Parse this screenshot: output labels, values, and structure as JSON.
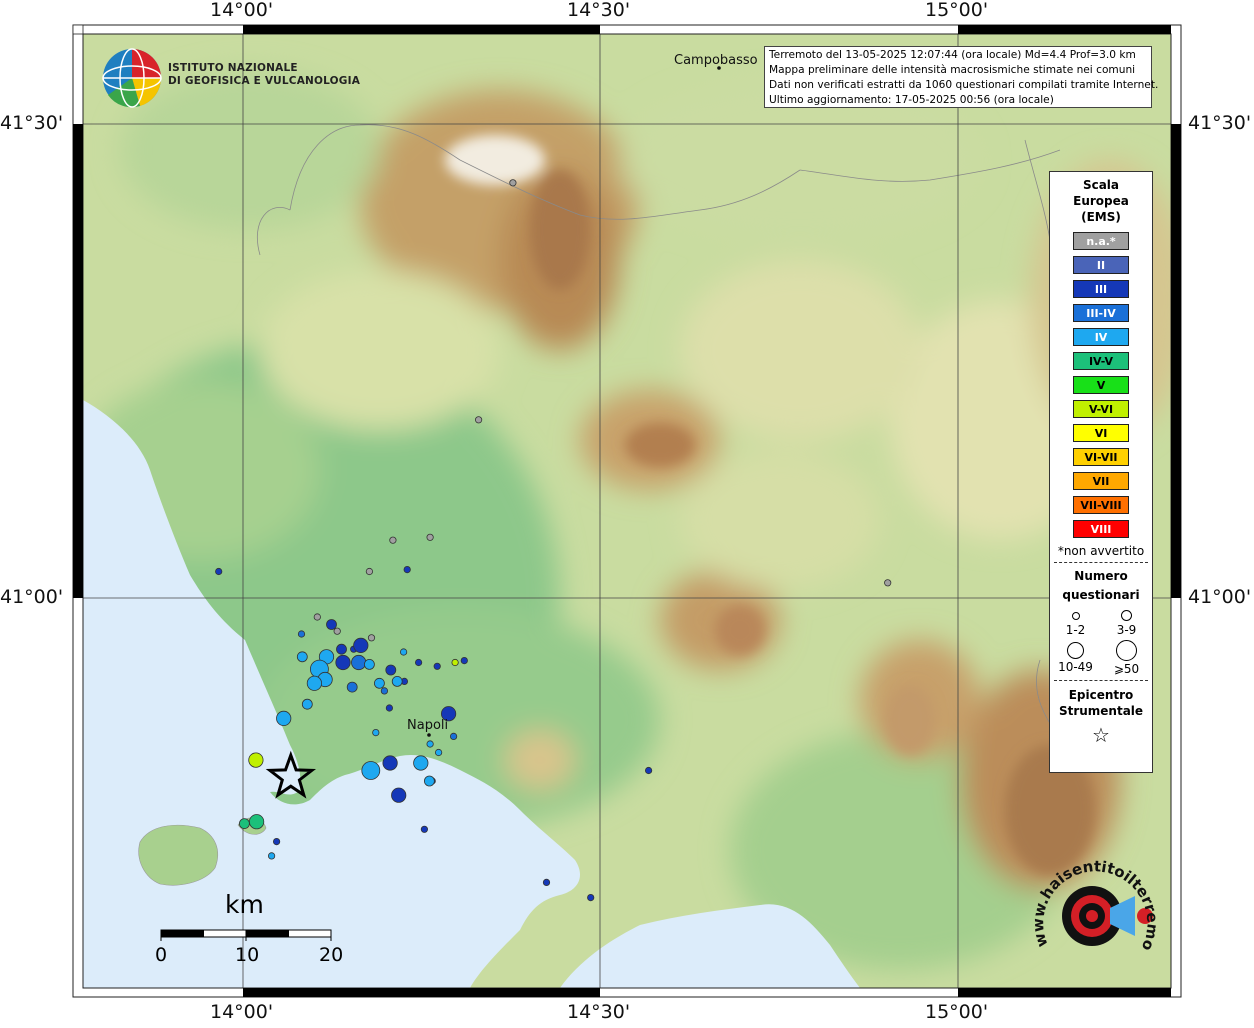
{
  "map": {
    "lon_ticks": [
      "14°00'",
      "14°30'",
      "15°00'"
    ],
    "lat_ticks": [
      "41°30'",
      "41°00'"
    ],
    "places": {
      "campobasso": "Campobasso",
      "napoli": "Napoli"
    }
  },
  "institute": {
    "line1": "ISTITUTO NAZIONALE",
    "line2": "DI GEOFISICA E VULCANOLOGIA"
  },
  "info": {
    "line1": "Terremoto del 13-05-2025 12:07:44 (ora locale) Md=4.4 Prof=3.0 km",
    "line2": "Mappa preliminare delle intensità macrosismiche stimate nei comuni",
    "line3": "Dati non verificati estratti da 1060 questionari compilati tramite Internet.",
    "line4": "Ultimo aggiornamento: 17-05-2025 00:56 (ora locale)"
  },
  "legend": {
    "title1": "Scala",
    "title2": "Europea",
    "title3": "(EMS)",
    "items": [
      {
        "label": "n.a.*",
        "color": "#a0a0a0",
        "dark": false
      },
      {
        "label": "II",
        "color": "#4a64b8",
        "dark": false
      },
      {
        "label": "III",
        "color": "#1538b8",
        "dark": false
      },
      {
        "label": "III-IV",
        "color": "#1a70d8",
        "dark": false
      },
      {
        "label": "IV",
        "color": "#1ea8f0",
        "dark": false
      },
      {
        "label": "IV-V",
        "color": "#1cc07a",
        "dark": true
      },
      {
        "label": "V",
        "color": "#18e018",
        "dark": true
      },
      {
        "label": "V-VI",
        "color": "#c0f000",
        "dark": true
      },
      {
        "label": "VI",
        "color": "#ffff00",
        "dark": true
      },
      {
        "label": "VI-VII",
        "color": "#ffd000",
        "dark": true
      },
      {
        "label": "VII",
        "color": "#ffa800",
        "dark": true
      },
      {
        "label": "VII-VIII",
        "color": "#ff7000",
        "dark": true
      },
      {
        "label": "VIII",
        "color": "#ff0000",
        "dark": false
      }
    ],
    "note": "*non avvertito",
    "count_title1": "Numero",
    "count_title2": "questionari",
    "counts": [
      "1-2",
      "3-9",
      "10-49",
      "⩾50"
    ],
    "epi_title1": "Epicentro",
    "epi_title2": "Strumentale"
  },
  "scalebar": {
    "unit": "km",
    "labels": [
      "0",
      "10",
      "20"
    ]
  },
  "brand": {
    "text": "www.haisentitoilterremoto.it"
  },
  "colors": {
    "sea": "#dcecfa",
    "land_low": "#8fc98a",
    "land_mid": "#d9e3a6",
    "land_high": "#b8885a"
  },
  "points": [
    {
      "lon": 14.378,
      "lat": 41.438,
      "c": "na",
      "n": 1
    },
    {
      "lon": 14.33,
      "lat": 41.188,
      "c": "na",
      "n": 1
    },
    {
      "lon": 14.21,
      "lat": 41.061,
      "c": "na",
      "n": 1
    },
    {
      "lon": 14.262,
      "lat": 41.064,
      "c": "na",
      "n": 1
    },
    {
      "lon": 14.177,
      "lat": 41.028,
      "c": "na",
      "n": 1
    },
    {
      "lon": 14.903,
      "lat": 41.016,
      "c": "na",
      "n": 1
    },
    {
      "lon": 14.132,
      "lat": 40.965,
      "c": "na",
      "n": 1
    },
    {
      "lon": 14.104,
      "lat": 40.98,
      "c": "na",
      "n": 1
    },
    {
      "lon": 14.18,
      "lat": 40.958,
      "c": "na",
      "n": 1
    },
    {
      "lon": 13.966,
      "lat": 41.028,
      "c": "III",
      "n": 1
    },
    {
      "lon": 14.23,
      "lat": 41.03,
      "c": "III",
      "n": 1
    },
    {
      "lon": 14.124,
      "lat": 40.972,
      "c": "III",
      "n": 2
    },
    {
      "lon": 14.138,
      "lat": 40.946,
      "c": "III",
      "n": 2
    },
    {
      "lon": 14.14,
      "lat": 40.932,
      "c": "III",
      "n": 3
    },
    {
      "lon": 14.155,
      "lat": 40.946,
      "c": "III",
      "n": 1
    },
    {
      "lon": 14.165,
      "lat": 40.95,
      "c": "III",
      "n": 3
    },
    {
      "lon": 14.207,
      "lat": 40.924,
      "c": "III",
      "n": 2
    },
    {
      "lon": 14.226,
      "lat": 40.912,
      "c": "III",
      "n": 1
    },
    {
      "lon": 14.246,
      "lat": 40.932,
      "c": "III",
      "n": 1
    },
    {
      "lon": 14.272,
      "lat": 40.928,
      "c": "III",
      "n": 1
    },
    {
      "lon": 14.31,
      "lat": 40.934,
      "c": "III",
      "n": 1
    },
    {
      "lon": 14.288,
      "lat": 40.878,
      "c": "III",
      "n": 3
    },
    {
      "lon": 14.205,
      "lat": 40.884,
      "c": "III",
      "n": 1
    },
    {
      "lon": 14.206,
      "lat": 40.826,
      "c": "III",
      "n": 3
    },
    {
      "lon": 14.218,
      "lat": 40.792,
      "c": "III",
      "n": 3
    },
    {
      "lon": 14.265,
      "lat": 40.807,
      "c": "III",
      "n": 1
    },
    {
      "lon": 14.047,
      "lat": 40.743,
      "c": "III",
      "n": 1
    },
    {
      "lon": 14.254,
      "lat": 40.756,
      "c": "III",
      "n": 1
    },
    {
      "lon": 14.425,
      "lat": 40.7,
      "c": "III",
      "n": 1
    },
    {
      "lon": 14.568,
      "lat": 40.818,
      "c": "III",
      "n": 1
    },
    {
      "lon": 14.487,
      "lat": 40.684,
      "c": "III",
      "n": 1
    },
    {
      "lon": 14.153,
      "lat": 40.906,
      "c": "III-IV",
      "n": 2
    },
    {
      "lon": 14.082,
      "lat": 40.962,
      "c": "III-IV",
      "n": 1
    },
    {
      "lon": 14.162,
      "lat": 40.932,
      "c": "III-IV",
      "n": 3
    },
    {
      "lon": 14.198,
      "lat": 40.902,
      "c": "III-IV",
      "n": 1
    },
    {
      "lon": 14.295,
      "lat": 40.854,
      "c": "III-IV",
      "n": 1
    },
    {
      "lon": 14.083,
      "lat": 40.938,
      "c": "IV",
      "n": 2
    },
    {
      "lon": 14.117,
      "lat": 40.938,
      "c": "IV",
      "n": 3
    },
    {
      "lon": 14.107,
      "lat": 40.925,
      "c": "IV",
      "n": 4
    },
    {
      "lon": 14.115,
      "lat": 40.914,
      "c": "IV",
      "n": 3
    },
    {
      "lon": 14.1,
      "lat": 40.91,
      "c": "IV",
      "n": 3
    },
    {
      "lon": 14.09,
      "lat": 40.888,
      "c": "IV",
      "n": 2
    },
    {
      "lon": 14.057,
      "lat": 40.873,
      "c": "IV",
      "n": 3
    },
    {
      "lon": 14.191,
      "lat": 40.91,
      "c": "IV",
      "n": 2
    },
    {
      "lon": 14.177,
      "lat": 40.93,
      "c": "IV",
      "n": 2
    },
    {
      "lon": 14.216,
      "lat": 40.912,
      "c": "IV",
      "n": 2
    },
    {
      "lon": 14.225,
      "lat": 40.943,
      "c": "IV",
      "n": 1
    },
    {
      "lon": 14.186,
      "lat": 40.858,
      "c": "IV",
      "n": 1
    },
    {
      "lon": 14.179,
      "lat": 40.818,
      "c": "IV",
      "n": 4
    },
    {
      "lon": 14.249,
      "lat": 40.826,
      "c": "IV",
      "n": 3
    },
    {
      "lon": 14.261,
      "lat": 40.807,
      "c": "IV",
      "n": 2
    },
    {
      "lon": 14.04,
      "lat": 40.728,
      "c": "IV",
      "n": 1
    },
    {
      "lon": 14.262,
      "lat": 40.846,
      "c": "IV",
      "n": 1
    },
    {
      "lon": 14.274,
      "lat": 40.837,
      "c": "IV",
      "n": 1
    },
    {
      "lon": 14.002,
      "lat": 40.762,
      "c": "IV-V",
      "n": 2
    },
    {
      "lon": 14.019,
      "lat": 40.764,
      "c": "IV-V",
      "n": 3
    },
    {
      "lon": 14.018,
      "lat": 40.829,
      "c": "V-VI",
      "n": 3
    },
    {
      "lon": 14.297,
      "lat": 40.932,
      "c": "V-VI",
      "n": 1
    }
  ],
  "epicenter": {
    "lon": 14.067,
    "lat": 40.811
  }
}
